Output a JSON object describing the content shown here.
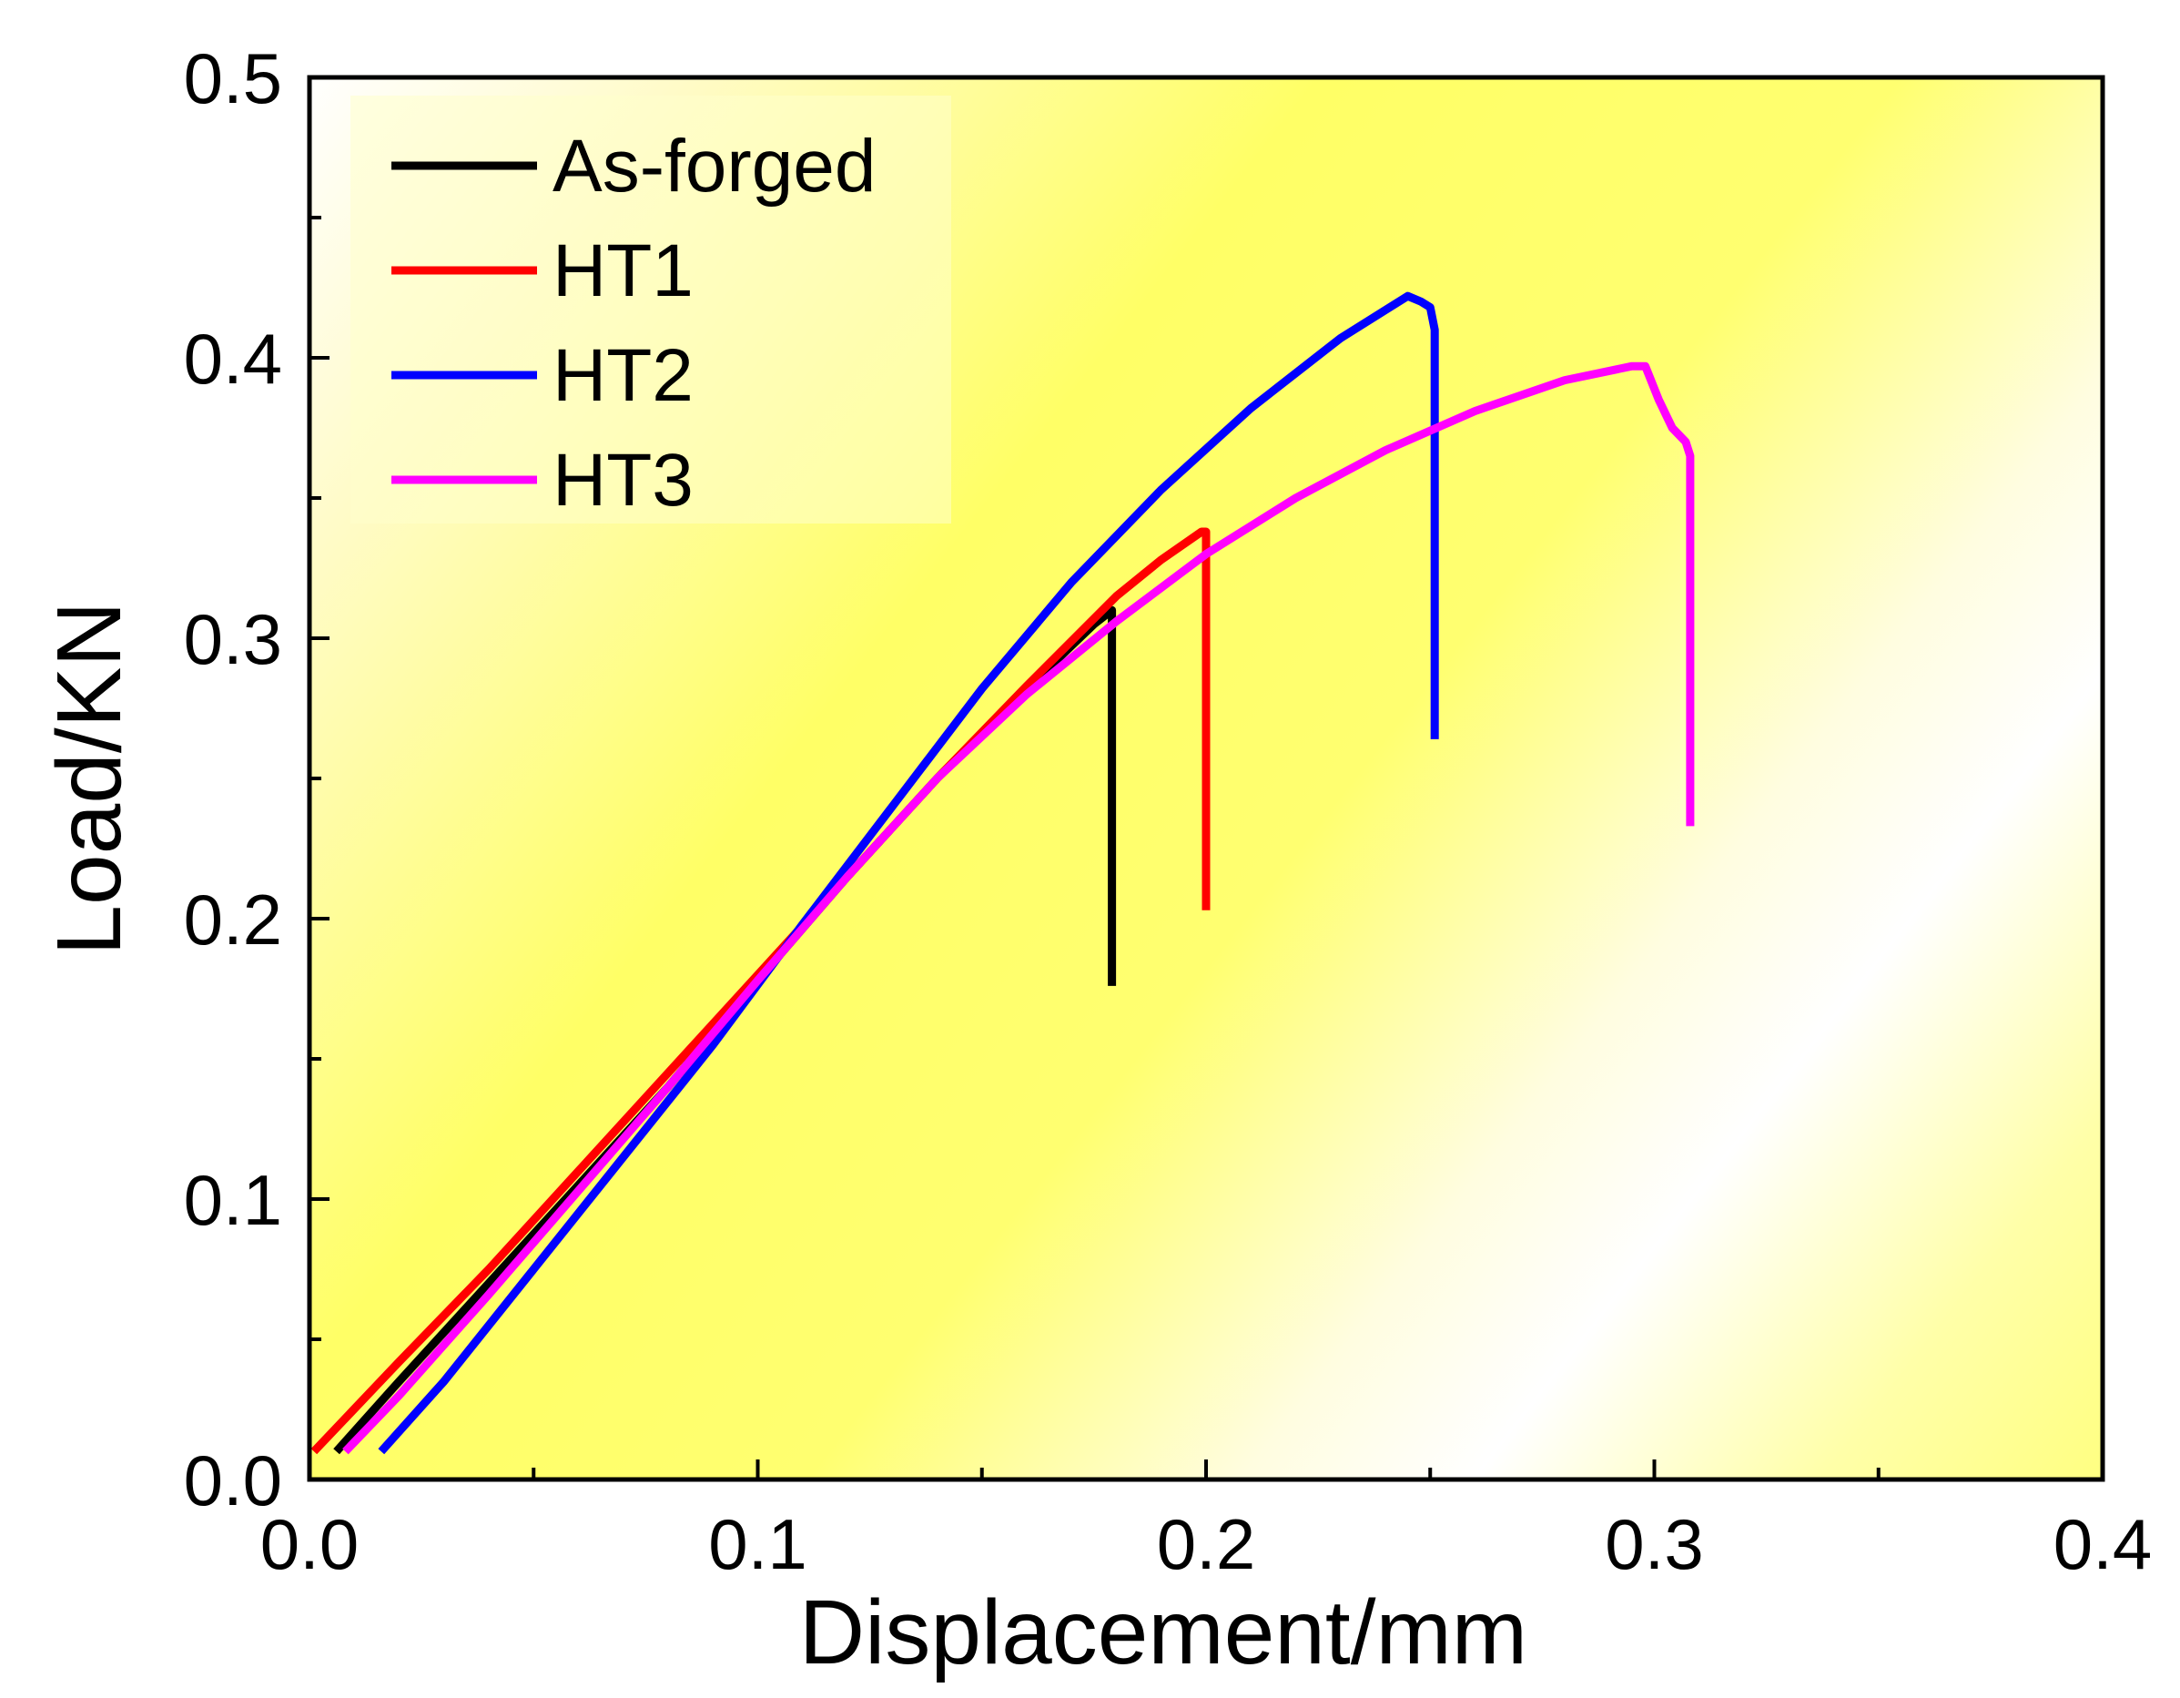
{
  "chart_data": {
    "type": "line",
    "title": "",
    "xlabel": "Displacement/mm",
    "ylabel": "Load/KN",
    "xlim": [
      0.0,
      0.4
    ],
    "ylim": [
      0.0,
      0.5
    ],
    "x_ticks": [
      "0.0",
      "0.1",
      "0.2",
      "0.3",
      "0.4"
    ],
    "y_ticks": [
      "0.0",
      "0.1",
      "0.2",
      "0.3",
      "0.4",
      "0.5"
    ],
    "legend_position": "top-left",
    "series": [
      {
        "name": "As-forged",
        "color": "#000000",
        "points": [
          [
            0.006,
            0.01
          ],
          [
            0.02,
            0.035
          ],
          [
            0.04,
            0.07
          ],
          [
            0.06,
            0.105
          ],
          [
            0.08,
            0.14
          ],
          [
            0.1,
            0.178
          ],
          [
            0.12,
            0.215
          ],
          [
            0.14,
            0.25
          ],
          [
            0.16,
            0.282
          ],
          [
            0.175,
            0.305
          ],
          [
            0.179,
            0.31
          ],
          [
            0.179,
            0.176
          ]
        ]
      },
      {
        "name": "HT1",
        "color": "#ff0000",
        "points": [
          [
            0.001,
            0.01
          ],
          [
            0.02,
            0.042
          ],
          [
            0.04,
            0.075
          ],
          [
            0.06,
            0.11
          ],
          [
            0.08,
            0.145
          ],
          [
            0.1,
            0.18
          ],
          [
            0.12,
            0.215
          ],
          [
            0.14,
            0.25
          ],
          [
            0.16,
            0.283
          ],
          [
            0.18,
            0.315
          ],
          [
            0.19,
            0.328
          ],
          [
            0.199,
            0.338
          ],
          [
            0.2,
            0.338
          ],
          [
            0.2,
            0.203
          ]
        ]
      },
      {
        "name": "HT2",
        "color": "#0000ff",
        "points": [
          [
            0.016,
            0.01
          ],
          [
            0.03,
            0.035
          ],
          [
            0.05,
            0.075
          ],
          [
            0.07,
            0.115
          ],
          [
            0.09,
            0.155
          ],
          [
            0.11,
            0.198
          ],
          [
            0.13,
            0.24
          ],
          [
            0.15,
            0.282
          ],
          [
            0.17,
            0.32
          ],
          [
            0.19,
            0.353
          ],
          [
            0.21,
            0.382
          ],
          [
            0.23,
            0.407
          ],
          [
            0.245,
            0.422
          ],
          [
            0.248,
            0.42
          ],
          [
            0.25,
            0.418
          ],
          [
            0.251,
            0.41
          ],
          [
            0.251,
            0.264
          ]
        ]
      },
      {
        "name": "HT3",
        "color": "#ff00ff",
        "points": [
          [
            0.008,
            0.01
          ],
          [
            0.02,
            0.03
          ],
          [
            0.04,
            0.066
          ],
          [
            0.06,
            0.103
          ],
          [
            0.08,
            0.14
          ],
          [
            0.1,
            0.178
          ],
          [
            0.12,
            0.215
          ],
          [
            0.14,
            0.25
          ],
          [
            0.16,
            0.28
          ],
          [
            0.18,
            0.306
          ],
          [
            0.2,
            0.33
          ],
          [
            0.22,
            0.35
          ],
          [
            0.24,
            0.367
          ],
          [
            0.26,
            0.381
          ],
          [
            0.28,
            0.392
          ],
          [
            0.295,
            0.397
          ],
          [
            0.298,
            0.397
          ],
          [
            0.301,
            0.385
          ],
          [
            0.304,
            0.375
          ],
          [
            0.307,
            0.37
          ],
          [
            0.308,
            0.365
          ],
          [
            0.308,
            0.233
          ]
        ]
      }
    ]
  }
}
